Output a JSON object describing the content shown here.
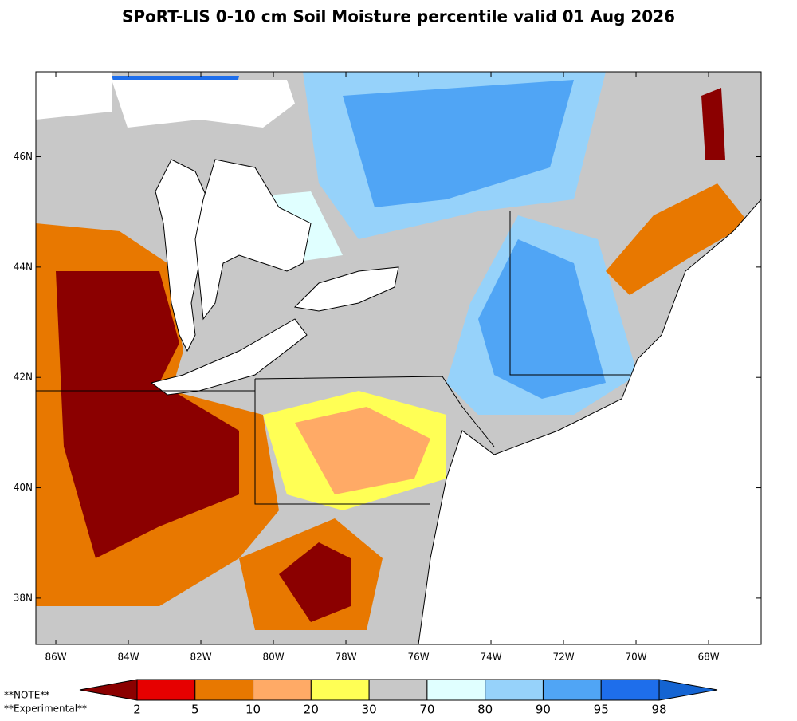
{
  "title": "SPoRT-LIS 0-10 cm Soil Moisture percentile valid 01 Aug 2026",
  "map": {
    "lonlim": [
      -86.55,
      -66.55
    ],
    "latlim": [
      37.16,
      47.54
    ],
    "lonticks": [
      {
        "value": -86,
        "label": "86W"
      },
      {
        "value": -84,
        "label": "84W"
      },
      {
        "value": -82,
        "label": "82W"
      },
      {
        "value": -80,
        "label": "80W"
      },
      {
        "value": -78,
        "label": "78W"
      },
      {
        "value": -76,
        "label": "76W"
      },
      {
        "value": -74,
        "label": "74W"
      },
      {
        "value": -72,
        "label": "72W"
      },
      {
        "value": -70,
        "label": "70W"
      },
      {
        "value": -68,
        "label": "68W"
      }
    ],
    "latticks": [
      {
        "value": 38,
        "label": "38N"
      },
      {
        "value": 40,
        "label": "40N"
      },
      {
        "value": 42,
        "label": "42N"
      },
      {
        "value": 44,
        "label": "44N"
      },
      {
        "value": 46,
        "label": "46N"
      }
    ]
  },
  "colorbar": {
    "bounds": [
      2,
      5,
      10,
      20,
      30,
      70,
      80,
      90,
      95,
      98
    ],
    "colors": [
      "#8b0000",
      "#e60000",
      "#e87800",
      "#ffaa66",
      "#ffff55",
      "#c8c8c8",
      "#e0ffff",
      "#96d2fa",
      "#50a5f5",
      "#1e6eeb",
      "#1464d2"
    ]
  },
  "notes": [
    "**NOTE**",
    "**Experimental**"
  ]
}
